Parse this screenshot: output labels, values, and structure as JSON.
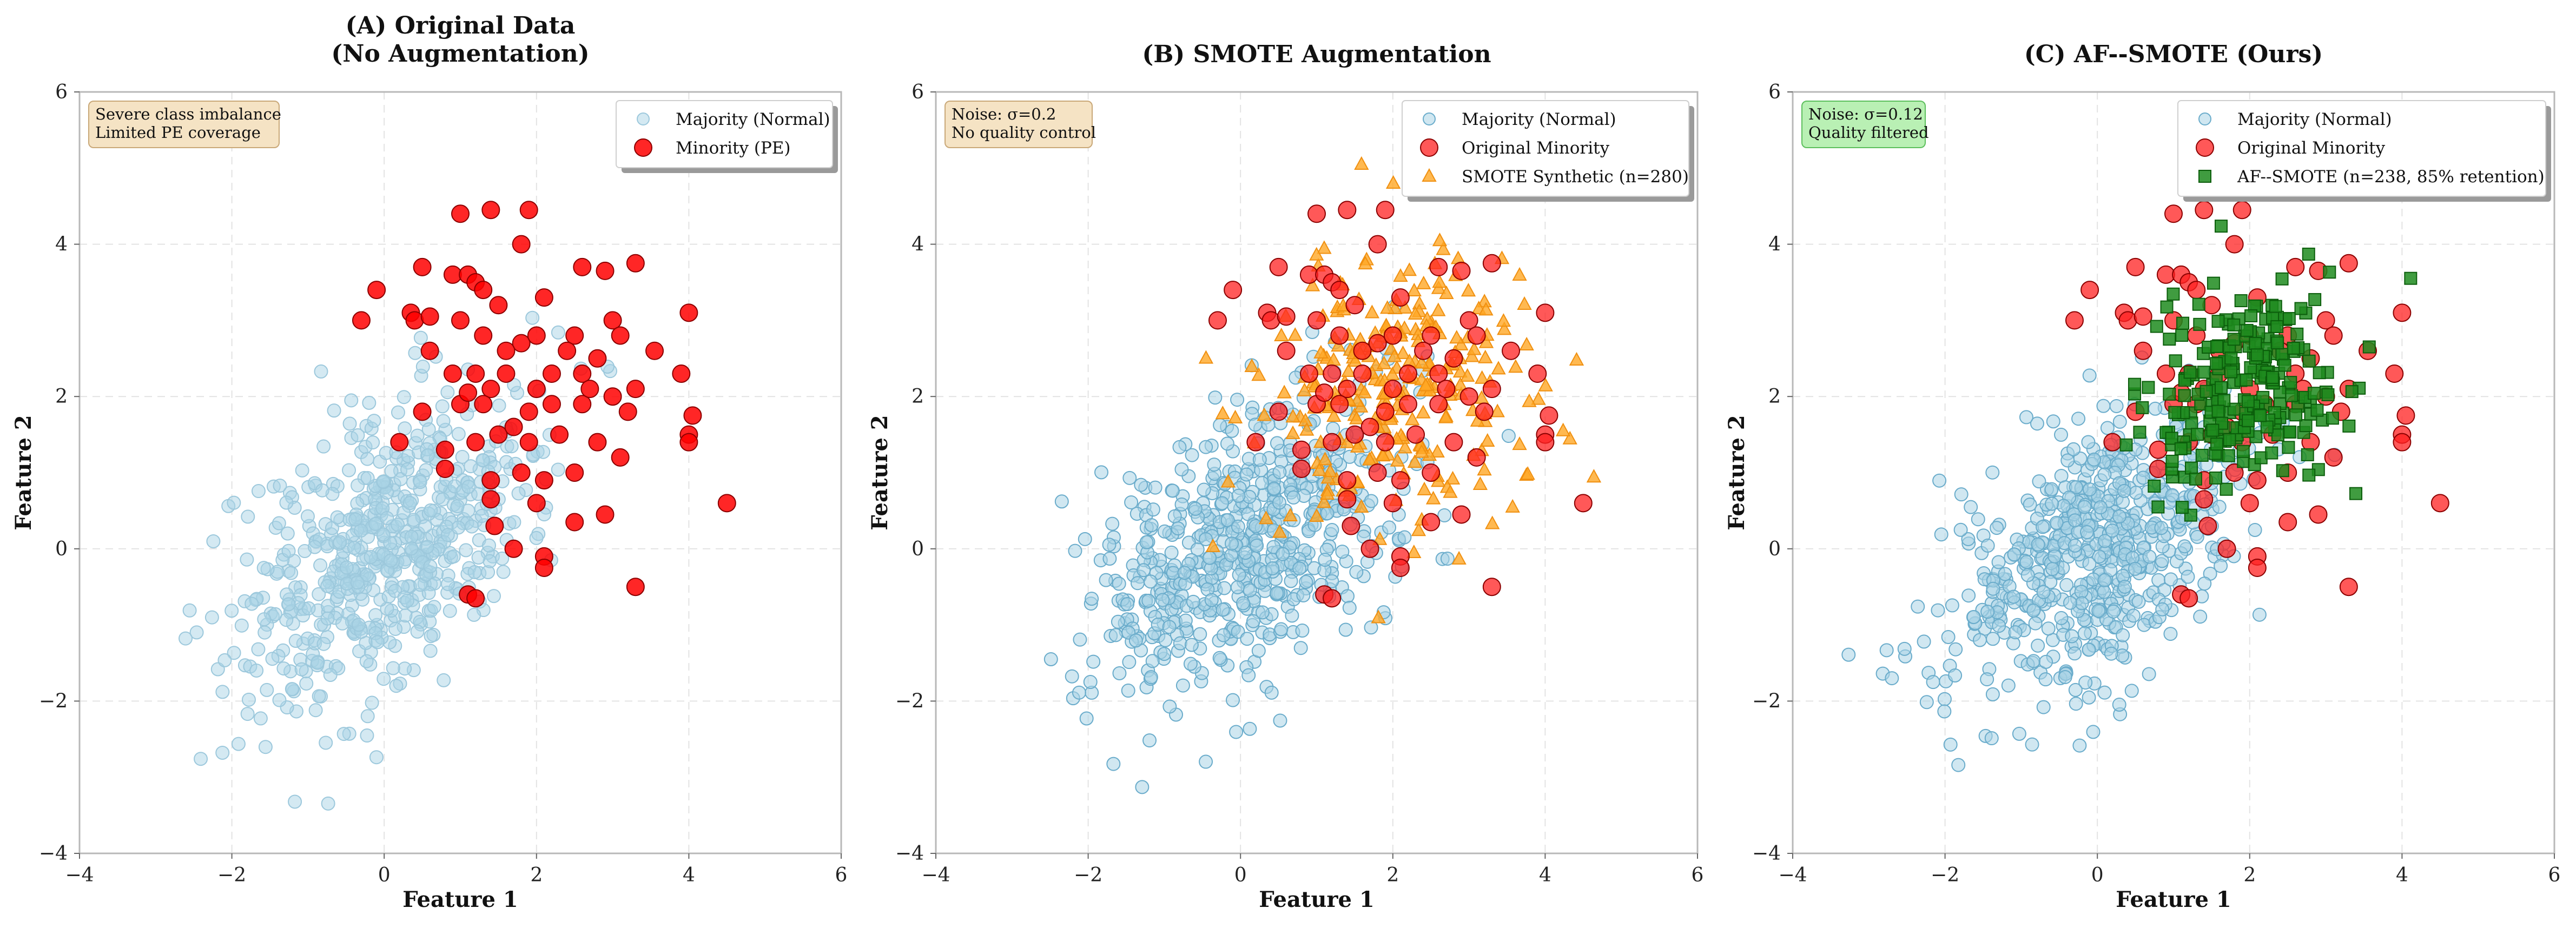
{
  "figure": {
    "xlabel": "Feature 1",
    "ylabel": "Feature 2"
  },
  "chart_data": [
    {
      "type": "scatter",
      "title_lines": [
        "(A) Original Data",
        "(No Augmentation)"
      ],
      "xlim": [
        -4,
        6
      ],
      "ylim": [
        -4,
        6
      ],
      "xticks": [
        -4,
        -2,
        0,
        2,
        4,
        6
      ],
      "yticks": [
        -4,
        -2,
        0,
        2,
        4,
        6
      ],
      "tick_labels": [
        "−4",
        "−2",
        "0",
        "2",
        "4",
        "6"
      ],
      "grid": true,
      "annotation": {
        "lines": [
          "Severe class imbalance",
          "Limited PE coverage"
        ],
        "fill": "#f5e3c4",
        "stroke": "#c9a878"
      },
      "legend": {
        "position": "top-right",
        "entries": [
          "Majority (Normal)",
          "Minority (PE)"
        ]
      },
      "series": [
        {
          "name": "Majority (Normal)",
          "marker": "circle",
          "color": "#a9d3e6",
          "edge": "#9cc8dc",
          "opacity": 0.5,
          "distribution": {
            "mean": [
              0,
              0
            ],
            "std": [
              1,
              1
            ],
            "correlation": 0.5,
            "n": 600
          }
        },
        {
          "name": "Minority (PE)",
          "marker": "circle",
          "color": "#ff0000",
          "edge": "#8b0000",
          "opacity": 0.85,
          "points": [
            [
              1.0,
              4.4
            ],
            [
              1.4,
              4.45
            ],
            [
              1.9,
              4.45
            ],
            [
              1.8,
              4.0
            ],
            [
              0.5,
              3.7
            ],
            [
              0.9,
              3.6
            ],
            [
              1.1,
              3.6
            ],
            [
              1.2,
              3.5
            ],
            [
              1.3,
              3.4
            ],
            [
              1.5,
              3.2
            ],
            [
              2.1,
              3.3
            ],
            [
              2.6,
              3.7
            ],
            [
              2.9,
              3.65
            ],
            [
              3.3,
              3.75
            ],
            [
              3.0,
              3.0
            ],
            [
              4.0,
              3.1
            ],
            [
              -0.3,
              3.0
            ],
            [
              -0.1,
              3.4
            ],
            [
              0.35,
              3.1
            ],
            [
              0.4,
              3.0
            ],
            [
              0.6,
              3.05
            ],
            [
              1.0,
              3.0
            ],
            [
              1.3,
              2.8
            ],
            [
              1.8,
              2.7
            ],
            [
              2.0,
              2.8
            ],
            [
              2.5,
              2.8
            ],
            [
              2.8,
              2.5
            ],
            [
              3.1,
              2.8
            ],
            [
              3.55,
              2.6
            ],
            [
              0.6,
              2.6
            ],
            [
              0.9,
              2.3
            ],
            [
              1.2,
              2.3
            ],
            [
              1.4,
              2.1
            ],
            [
              1.6,
              2.3
            ],
            [
              2.2,
              2.3
            ],
            [
              2.6,
              2.3
            ],
            [
              3.0,
              2.0
            ],
            [
              3.3,
              2.1
            ],
            [
              3.9,
              2.3
            ],
            [
              0.5,
              1.8
            ],
            [
              1.0,
              1.9
            ],
            [
              1.3,
              1.9
            ],
            [
              1.9,
              1.8
            ],
            [
              2.2,
              1.9
            ],
            [
              2.6,
              1.9
            ],
            [
              3.2,
              1.8
            ],
            [
              4.05,
              1.75
            ],
            [
              4.0,
              1.5
            ],
            [
              4.0,
              1.4
            ],
            [
              0.2,
              1.4
            ],
            [
              0.8,
              1.3
            ],
            [
              1.2,
              1.4
            ],
            [
              1.5,
              1.5
            ],
            [
              1.9,
              1.4
            ],
            [
              2.3,
              1.5
            ],
            [
              2.8,
              1.4
            ],
            [
              3.1,
              1.2
            ],
            [
              0.8,
              1.05
            ],
            [
              1.4,
              0.9
            ],
            [
              1.8,
              1.0
            ],
            [
              2.1,
              0.9
            ],
            [
              2.5,
              1.0
            ],
            [
              1.4,
              0.65
            ],
            [
              2.0,
              0.6
            ],
            [
              2.9,
              0.45
            ],
            [
              1.45,
              0.3
            ],
            [
              2.5,
              0.35
            ],
            [
              1.7,
              0.0
            ],
            [
              2.1,
              -0.1
            ],
            [
              2.1,
              -0.25
            ],
            [
              1.1,
              -0.6
            ],
            [
              1.2,
              -0.65
            ],
            [
              3.3,
              -0.5
            ],
            [
              4.5,
              0.6
            ],
            [
              1.6,
              2.6
            ],
            [
              2.4,
              2.6
            ],
            [
              2.0,
              2.1
            ],
            [
              1.7,
              1.6
            ],
            [
              2.7,
              2.1
            ],
            [
              1.1,
              2.05
            ]
          ]
        }
      ]
    },
    {
      "type": "scatter",
      "title_lines": [
        "(B) SMOTE Augmentation"
      ],
      "xlim": [
        -4,
        6
      ],
      "ylim": [
        -4,
        6
      ],
      "xticks": [
        -4,
        -2,
        0,
        2,
        4,
        6
      ],
      "yticks": [
        -4,
        -2,
        0,
        2,
        4,
        6
      ],
      "tick_labels": [
        "−4",
        "−2",
        "0",
        "2",
        "4",
        "6"
      ],
      "grid": true,
      "annotation": {
        "lines": [
          "Noise: σ=0.2",
          "No quality control"
        ],
        "fill": "#f5e3c4",
        "stroke": "#c9a878"
      },
      "legend": {
        "position": "top-right",
        "entries": [
          "Majority (Normal)",
          "Original Minority",
          "SMOTE Synthetic (n=280)"
        ]
      },
      "series": [
        {
          "name": "Majority (Normal)",
          "marker": "circle",
          "color": "#a9d3e6",
          "edge": "#6aaccb",
          "opacity": 0.55,
          "distribution": {
            "mean": [
              0,
              0
            ],
            "std": [
              1,
              1
            ],
            "correlation": 0.5,
            "n": 600
          }
        },
        {
          "name": "SMOTE Synthetic (n=280)",
          "marker": "triangle",
          "color": "#ffa726",
          "edge": "#f09010",
          "opacity": 0.8,
          "distribution": {
            "mean": [
              2,
              2
            ],
            "std": [
              0.9,
              0.9
            ],
            "correlation": 0.1,
            "n": 280
          }
        },
        {
          "name": "Original Minority",
          "marker": "circle",
          "color": "#ff2020",
          "edge": "#8b0000",
          "opacity": 0.75,
          "points_from": 0
        }
      ]
    },
    {
      "type": "scatter",
      "title_lines": [
        "(C) AF--SMOTE (Ours)"
      ],
      "xlim": [
        -4,
        6
      ],
      "ylim": [
        -4,
        6
      ],
      "xticks": [
        -4,
        -2,
        0,
        2,
        4,
        6
      ],
      "yticks": [
        -4,
        -2,
        0,
        2,
        4,
        6
      ],
      "tick_labels": [
        "−4",
        "−2",
        "0",
        "2",
        "4",
        "6"
      ],
      "grid": true,
      "annotation": {
        "lines": [
          "Noise: σ=0.12",
          "Quality filtered"
        ],
        "fill": "#b9f0b4",
        "stroke": "#5cbf5c"
      },
      "legend": {
        "position": "top-right",
        "entries": [
          "Majority (Normal)",
          "Original Minority",
          "AF--SMOTE (n=238, 85% retention)"
        ]
      },
      "series": [
        {
          "name": "Majority (Normal)",
          "marker": "circle",
          "color": "#a9d3e6",
          "edge": "#6aaccb",
          "opacity": 0.55,
          "distribution": {
            "mean": [
              0,
              0
            ],
            "std": [
              1,
              1
            ],
            "correlation": 0.5,
            "n": 600
          }
        },
        {
          "name": "Original Minority",
          "marker": "circle",
          "color": "#ff2020",
          "edge": "#8b0000",
          "opacity": 0.75,
          "points_from": 0
        },
        {
          "name": "AF--SMOTE (n=238, 85% retention)",
          "marker": "square",
          "color": "#1f8b1f",
          "edge": "#0b5d0b",
          "opacity": 0.85,
          "distribution": {
            "mean": [
              1.95,
              2.05
            ],
            "std": [
              0.6,
              0.65
            ],
            "correlation": 0.1,
            "n": 238
          }
        }
      ]
    }
  ]
}
